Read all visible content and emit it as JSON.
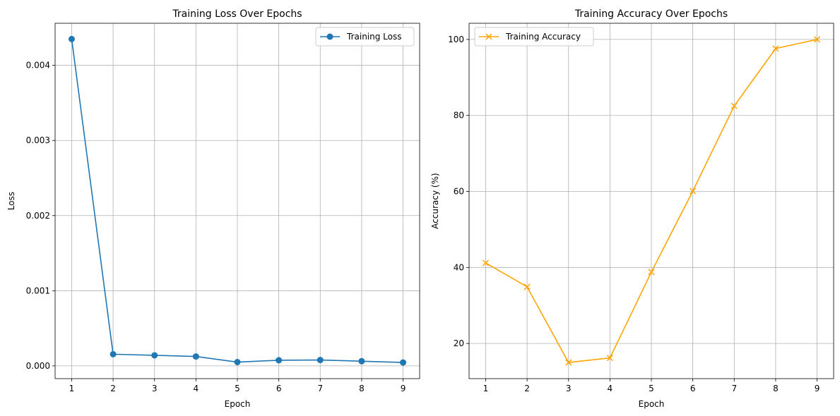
{
  "chart_data": [
    {
      "type": "line",
      "title": "Training Loss Over Epochs",
      "xlabel": "Epoch",
      "ylabel": "Loss",
      "x": [
        1,
        2,
        3,
        4,
        5,
        6,
        7,
        8,
        9
      ],
      "xticks": [
        "1",
        "2",
        "3",
        "4",
        "5",
        "6",
        "7",
        "8",
        "9"
      ],
      "xlim": [
        0.6,
        9.4
      ],
      "yticks": [
        "0.000",
        "0.001",
        "0.002",
        "0.003",
        "0.004"
      ],
      "ytick_values": [
        0,
        0.001,
        0.002,
        0.003,
        0.004
      ],
      "ylim": [
        -0.00017,
        0.00456
      ],
      "grid": true,
      "legend_position": "top-right",
      "series": [
        {
          "name": "Training Loss",
          "color": "#1f77b4",
          "marker": "circle",
          "values": [
            0.00435,
            0.000155,
            0.00014,
            0.000125,
            5e-05,
            7.5e-05,
            7.8e-05,
            6.2e-05,
            4.5e-05
          ]
        }
      ]
    },
    {
      "type": "line",
      "title": "Training Accuracy Over Epochs",
      "xlabel": "Epoch",
      "ylabel": "Accuracy (%)",
      "x": [
        1,
        2,
        3,
        4,
        5,
        6,
        7,
        8,
        9
      ],
      "xticks": [
        "1",
        "2",
        "3",
        "4",
        "5",
        "6",
        "7",
        "8",
        "9"
      ],
      "xlim": [
        0.6,
        9.4
      ],
      "yticks": [
        "20",
        "40",
        "60",
        "80",
        "100"
      ],
      "ytick_values": [
        20,
        40,
        60,
        80,
        100
      ],
      "ylim": [
        10.75,
        104.25
      ],
      "grid": true,
      "legend_position": "top-left",
      "series": [
        {
          "name": "Training Accuracy",
          "color": "#ffa500",
          "marker": "x",
          "values": [
            41.2,
            34.9,
            15.0,
            16.2,
            38.8,
            60.1,
            82.5,
            97.6,
            100.0
          ]
        }
      ]
    }
  ]
}
